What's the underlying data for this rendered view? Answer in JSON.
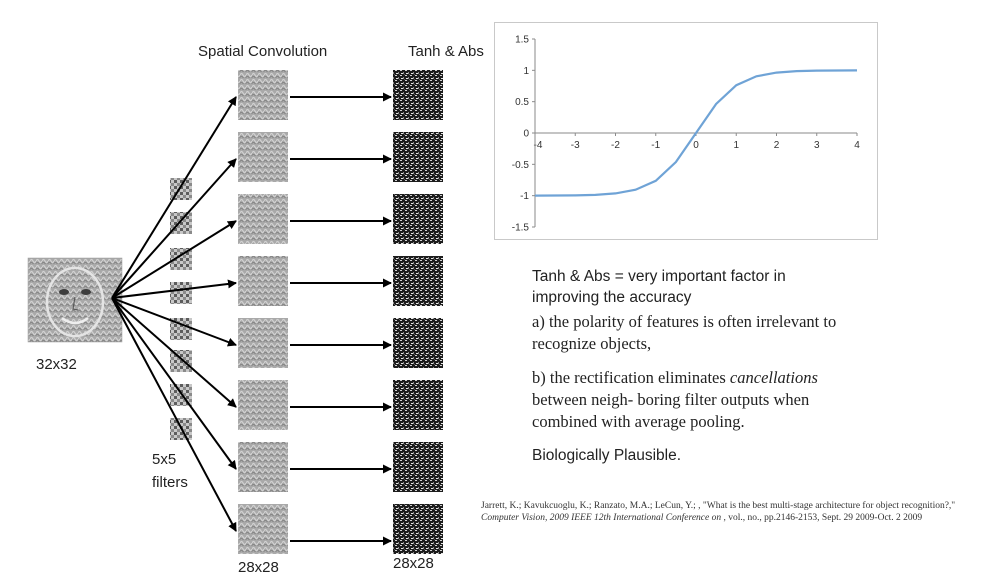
{
  "diagram": {
    "header_conv": "Spatial Convolution",
    "header_tanh": "Tanh & Abs",
    "input_size": "32x32",
    "conv_size": "28x28",
    "out_size": "28x28",
    "filters_size": "5x5",
    "filters_word": "filters"
  },
  "chart_data": {
    "type": "line",
    "x": [
      -4,
      -3.5,
      -3,
      -2.5,
      -2,
      -1.5,
      -1,
      -0.5,
      0,
      0.5,
      1,
      1.5,
      2,
      2.5,
      3,
      3.5,
      4
    ],
    "series": [
      {
        "values": [
          -0.999,
          -0.998,
          -0.995,
          -0.987,
          -0.964,
          -0.905,
          -0.762,
          -0.462,
          0,
          0.462,
          0.762,
          0.905,
          0.964,
          0.987,
          0.995,
          0.998,
          0.999
        ]
      }
    ],
    "xlim": [
      -4,
      4
    ],
    "ylim": [
      -1.5,
      1.5
    ],
    "xticks": [
      "-4",
      "-3",
      "-2",
      "-1",
      "0",
      "1",
      "2",
      "3",
      "4"
    ],
    "yticks": [
      "1.5",
      "1",
      "0.5",
      "0",
      "-0.5",
      "-1",
      "-1.5"
    ],
    "line_color": "#6fa3d6",
    "grid": false
  },
  "text": {
    "headline_1": "Tanh & Abs = very important factor in",
    "headline_2": "improving the accuracy",
    "point_a_1": "a) the polarity of features is often irrelevant to",
    "point_a_2": "recognize objects,",
    "point_b_1_pre": "b) the rectification eliminates ",
    "point_b_1_em": "cancellations",
    "point_b_2": "between neigh- boring filter outputs when",
    "point_b_3": "combined with average pooling.",
    "conclusion": "Biologically Plausible."
  },
  "citation": {
    "part1": "Jarrett, K.; Kavukcuoglu, K.; Ranzato, M.A.; LeCun, Y.; , \"What is the best multi-stage architecture for object recognition?,\" ",
    "venue": "Computer Vision, 2009 IEEE 12th International Conference on",
    "part2": " , vol., no., pp.2146-2153, Sept. 29 2009-Oct. 2 2009"
  }
}
